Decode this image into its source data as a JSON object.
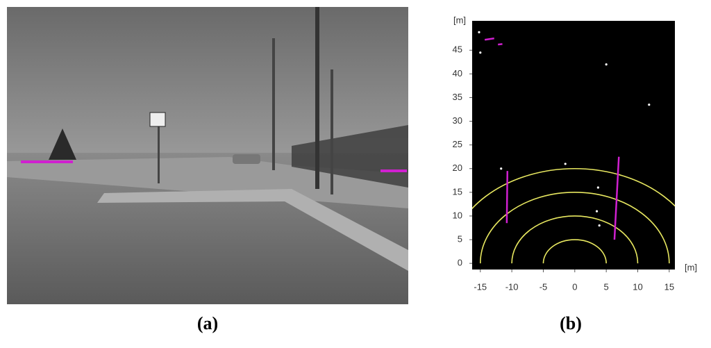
{
  "labels": {
    "a": "(a)",
    "b": "(b)"
  },
  "chart_data": {
    "type": "scatter",
    "xlabel": "[m]",
    "ylabel": "[m]",
    "xlim": [
      -16.3,
      15.9
    ],
    "ylim": [
      -1.3,
      51.2
    ],
    "xticks": [
      -15,
      -10,
      -5,
      0,
      5,
      10,
      15
    ],
    "yticks": [
      0,
      5,
      10,
      15,
      20,
      25,
      30,
      35,
      40,
      45
    ],
    "background": "#000000",
    "rings": [
      5,
      10,
      15,
      20
    ],
    "ring_color": "#e8e860",
    "series": [
      {
        "mode": "line",
        "color": "#d020d0",
        "x": [
          -10.8,
          -10.7,
          null,
          6.3,
          7.0,
          null,
          -14.3,
          -12.8,
          null,
          -12.2,
          -11.5
        ],
        "values": [
          8.5,
          19.5,
          null,
          5,
          22.5,
          null,
          47.2,
          47.5,
          null,
          46.2,
          46.3
        ]
      },
      {
        "mode": "points",
        "color": "#ffffff",
        "x": [
          -15.2,
          -15,
          5,
          11.8,
          -11.7,
          -1.5,
          3.7,
          3.5,
          3.9
        ],
        "values": [
          48.8,
          44.5,
          42,
          33.5,
          20,
          21,
          16,
          11,
          8
        ]
      }
    ]
  }
}
